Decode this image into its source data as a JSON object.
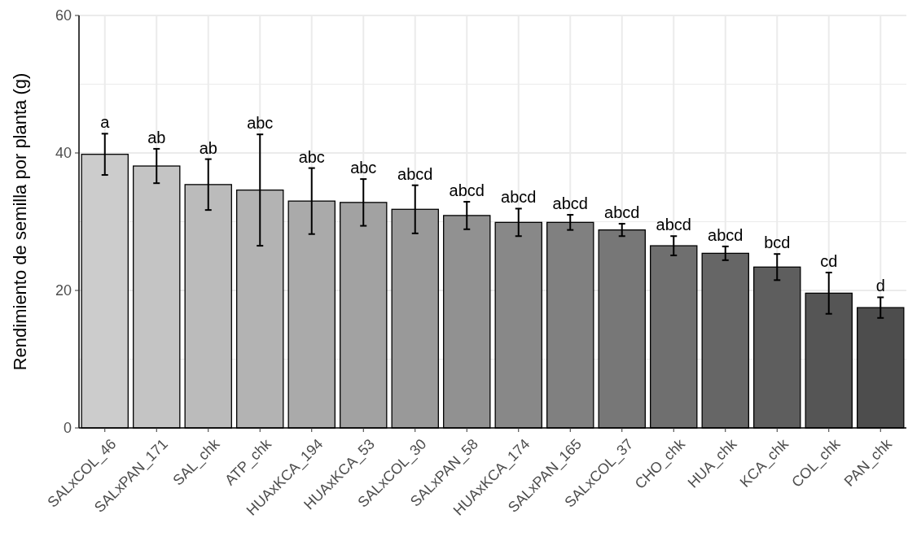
{
  "chart_data": {
    "type": "bar",
    "ylabel": "Rendimiento de semilla por planta (g)",
    "categories": [
      "SALxCOL_46",
      "SALxPAN_171",
      "SAL_chk",
      "ATP_chk",
      "HUAxKCA_194",
      "HUAxKCA_53",
      "SALxCOL_30",
      "SALxPAN_58",
      "HUAxKCA_174",
      "SALxPAN_165",
      "SALxCOL_37",
      "CHO_chk",
      "HUA_chk",
      "KCA_chk",
      "COL_chk",
      "PAN_chk"
    ],
    "values": [
      39.8,
      38.1,
      35.4,
      34.6,
      33.0,
      32.8,
      31.8,
      30.9,
      29.9,
      29.9,
      28.8,
      26.5,
      25.4,
      23.4,
      19.6,
      17.5
    ],
    "errors": [
      3.0,
      2.5,
      3.7,
      8.1,
      4.8,
      3.4,
      3.5,
      2.0,
      2.0,
      1.1,
      0.9,
      1.4,
      1.0,
      1.9,
      3.0,
      1.5
    ],
    "colors": [
      "#cccccc",
      "#c4c4c4",
      "#bbbbbb",
      "#b3b3b3",
      "#aaaaaa",
      "#a2a2a2",
      "#999999",
      "#919191",
      "#888888",
      "#808080",
      "#777777",
      "#6f6f6f",
      "#666666",
      "#5e5e5e",
      "#555555",
      "#4d4d4d"
    ],
    "ylim": [
      0,
      60
    ],
    "yticks": [
      0,
      20,
      40,
      60
    ],
    "grid": true,
    "annotations": [
      {
        "text": "a",
        "x": "SALxCOL_46",
        "y": 42.8
      },
      {
        "text": "ab",
        "x": "SALxPAN_171",
        "y": 40.6
      },
      {
        "text": "ab",
        "x": "SAL_chk",
        "y": 39.1
      },
      {
        "text": "abc",
        "x": "ATP_chk",
        "y": 42.7
      },
      {
        "text": "abc",
        "x": "HUAxKCA_194",
        "y": 37.8
      },
      {
        "text": "abc",
        "x": "HUAxKCA_53",
        "y": 36.2
      },
      {
        "text": "abcd",
        "x": "SALxCOL_30",
        "y": 35.3
      },
      {
        "text": "abcd",
        "x": "SALxPAN_58",
        "y": 32.9
      },
      {
        "text": "abcd",
        "x": "HUAxKCA_174",
        "y": 31.9
      },
      {
        "text": "abcd",
        "x": "SALxPAN_165",
        "y": 31.0
      },
      {
        "text": "abcd",
        "x": "SALxCOL_37",
        "y": 29.7
      },
      {
        "text": "abcd",
        "x": "CHO_chk",
        "y": 27.9
      },
      {
        "text": "abcd",
        "x": "HUA_chk",
        "y": 26.4
      },
      {
        "text": "bcd",
        "x": "KCA_chk",
        "y": 25.3
      },
      {
        "text": "cd",
        "x": "COL_chk",
        "y": 22.6
      },
      {
        "text": "d",
        "x": "PAN_chk",
        "y": 19.0
      }
    ]
  }
}
